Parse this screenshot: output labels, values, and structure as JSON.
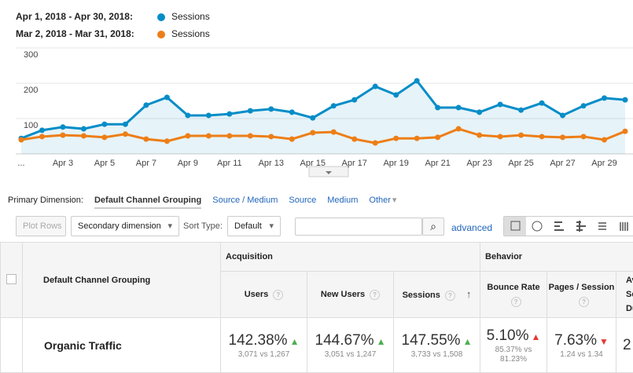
{
  "chart_data": {
    "type": "line",
    "categories": [
      "...",
      null,
      "Apr 3",
      null,
      "Apr 5",
      null,
      "Apr 7",
      null,
      "Apr 9",
      null,
      "Apr 11",
      null,
      "Apr 13",
      null,
      "Apr 15",
      null,
      "Apr 17",
      null,
      "Apr 19",
      null,
      "Apr 21",
      null,
      "Apr 23",
      null,
      "Apr 25",
      null,
      "Apr 27",
      null,
      "Apr 29",
      null
    ],
    "series": [
      {
        "name": "Sessions",
        "range": "Apr 1, 2018 - Apr 30, 2018:",
        "color": "#058dc7",
        "area": true,
        "values": [
          44,
          67,
          76,
          71,
          84,
          84,
          138,
          160,
          109,
          109,
          113,
          122,
          127,
          118,
          102,
          136,
          153,
          191,
          167,
          207,
          131,
          131,
          118,
          140,
          124,
          144,
          109,
          136,
          158,
          153
        ]
      },
      {
        "name": "Sessions",
        "range": "Mar 2, 2018 - Mar 31, 2018:",
        "color": "#ed7e17",
        "area": false,
        "values": [
          40,
          49,
          53,
          51,
          47,
          56,
          42,
          36,
          51,
          51,
          51,
          51,
          49,
          42,
          60,
          62,
          42,
          31,
          44,
          44,
          47,
          71,
          53,
          49,
          53,
          49,
          47,
          49,
          40,
          64
        ]
      }
    ],
    "ylim": [
      0,
      300
    ],
    "yticks": [
      100,
      200,
      300
    ],
    "grid": true
  },
  "dimension_bar": {
    "label": "Primary Dimension:",
    "active": "Default Channel Grouping",
    "links": [
      "Source / Medium",
      "Source",
      "Medium",
      "Other"
    ]
  },
  "toolbar": {
    "plot_rows": "Plot Rows",
    "secondary": "Secondary dimension",
    "sort_label": "Sort Type:",
    "sort_value": "Default",
    "advanced": "advanced"
  },
  "table": {
    "dimension_header": "Default Channel Grouping",
    "groups": [
      "Acquisition",
      "Behavior"
    ],
    "columns": [
      "Users",
      "New Users",
      "Sessions",
      "Bounce Rate",
      "Pages / Session",
      "Avg. Session Duration"
    ],
    "row": {
      "name": "Organic Traffic",
      "cells": [
        [
          "142.38%",
          "3,071 vs 1,267"
        ],
        [
          "144.67%",
          "3,051 vs 1,247"
        ],
        [
          "147.55%",
          "3,733 vs 1,508"
        ],
        [
          "5.10%",
          "85.37% vs 81.23%"
        ],
        [
          "7.63%",
          "1.24 vs 1.34"
        ],
        [
          "2",
          ""
        ]
      ]
    }
  }
}
